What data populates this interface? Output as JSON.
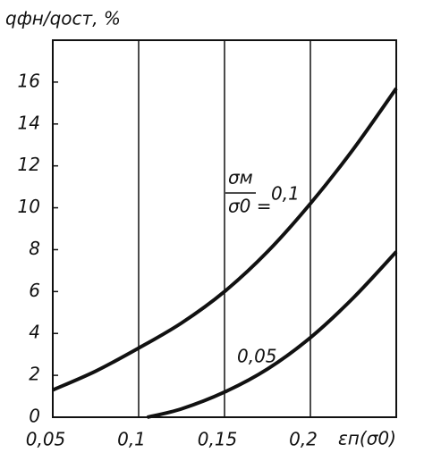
{
  "chart_data": {
    "type": "line",
    "y_label": "qфн/qост, %",
    "x_label": "εп(σ0)",
    "annotation": {
      "numerator": "σм",
      "denominator": "σ0 ="
    },
    "xlim": [
      0.05,
      0.25
    ],
    "ylim": [
      0,
      18
    ],
    "xticks": [
      {
        "value": 0.05,
        "label": "0,05"
      },
      {
        "value": 0.1,
        "label": "0,1"
      },
      {
        "value": 0.15,
        "label": "0,15"
      },
      {
        "value": 0.2,
        "label": "0,2"
      }
    ],
    "yticks": [
      0,
      2,
      4,
      6,
      8,
      10,
      12,
      14,
      16
    ],
    "grid": true,
    "series": [
      {
        "name": "0,1",
        "color": "#111111",
        "x": [
          0.05,
          0.075,
          0.1,
          0.125,
          0.15,
          0.175,
          0.2,
          0.225,
          0.25
        ],
        "values": [
          1.3,
          2.2,
          3.3,
          4.5,
          6.0,
          7.9,
          10.2,
          12.8,
          15.7
        ]
      },
      {
        "name": "0,05",
        "color": "#111111",
        "x": [
          0.105,
          0.125,
          0.15,
          0.175,
          0.2,
          0.225,
          0.25
        ],
        "values": [
          0,
          0.4,
          1.2,
          2.3,
          3.8,
          5.7,
          7.9
        ]
      }
    ]
  }
}
